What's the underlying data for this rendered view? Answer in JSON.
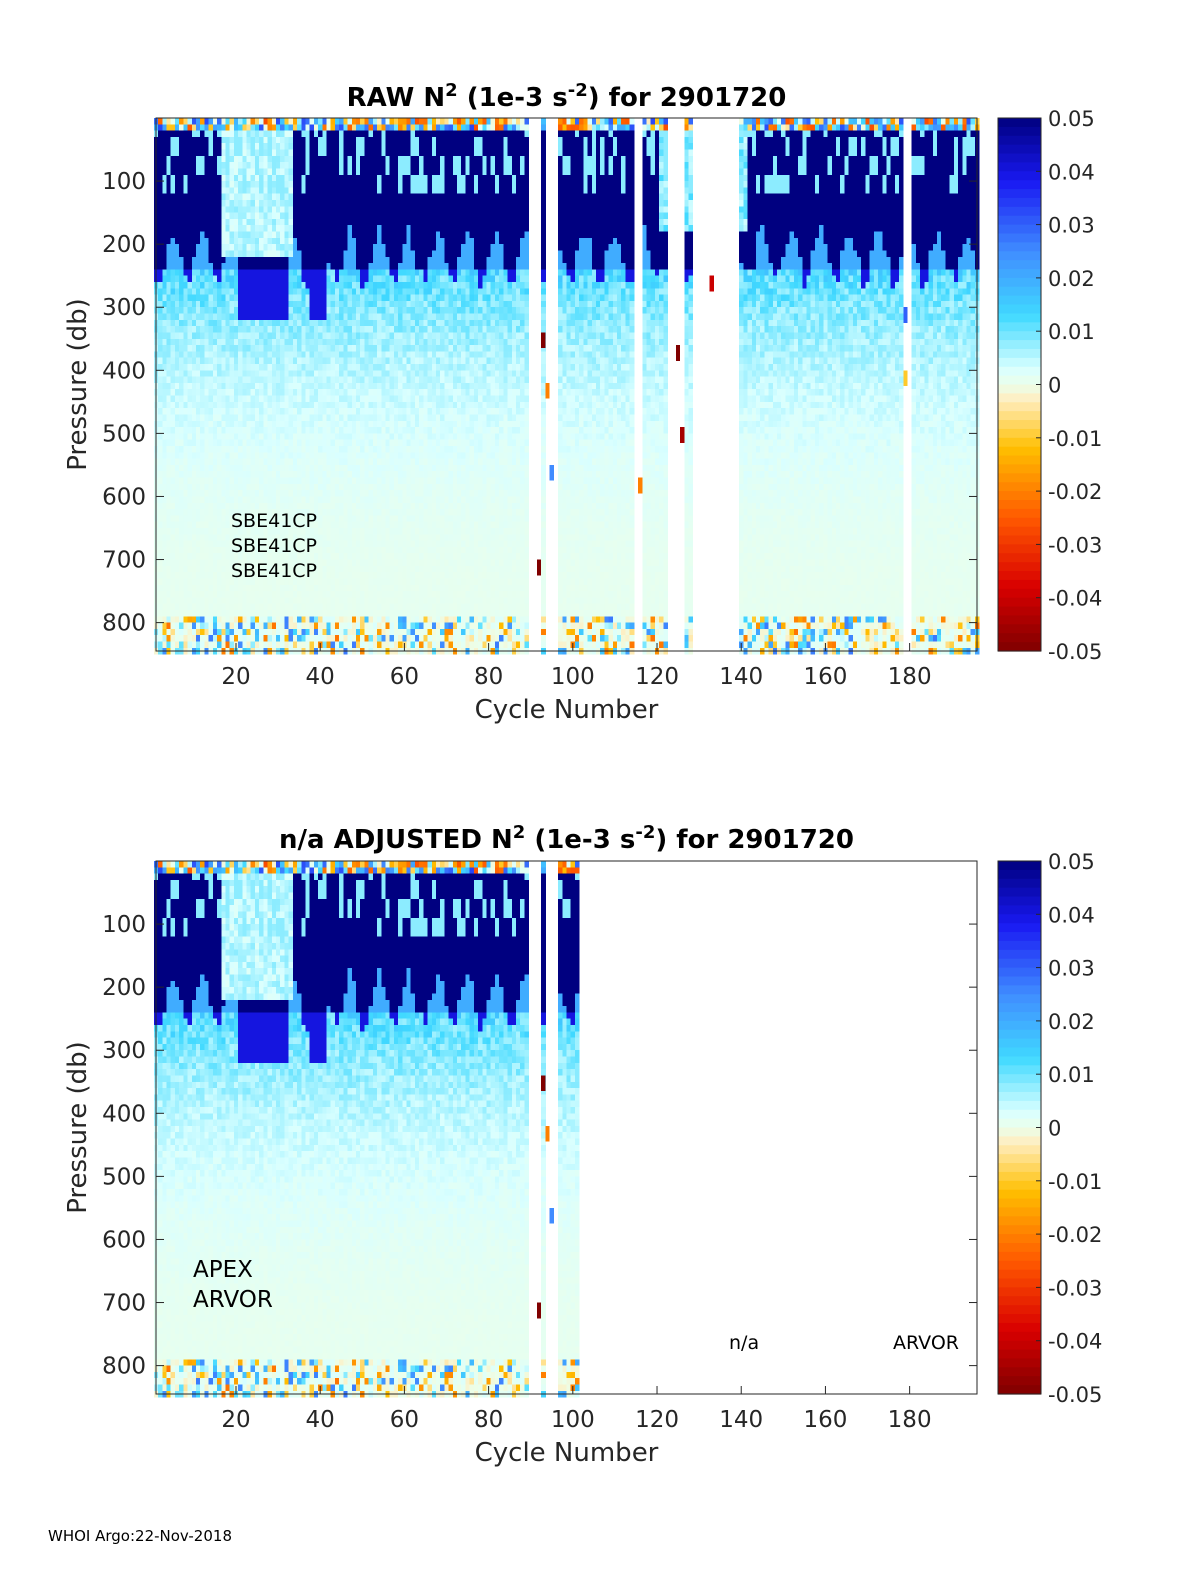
{
  "chart_data": [
    {
      "type": "heatmap",
      "title_prefix": "",
      "title_main": "RAW N",
      "title_sup": "2",
      "title_mid": " (1e-3 s",
      "title_sup2": "-2",
      "title_end": ") for 2901720",
      "xlabel": "Cycle Number",
      "ylabel": "Pressure (db)",
      "xlim": [
        1,
        196
      ],
      "ylim": [
        845,
        0
      ],
      "xticks": [
        "20",
        "40",
        "60",
        "80",
        "100",
        "120",
        "140",
        "160",
        "180"
      ],
      "yticks": [
        "100",
        "200",
        "300",
        "400",
        "500",
        "600",
        "700",
        "800"
      ],
      "clim": [
        -0.05,
        0.05
      ],
      "cycle_max": 196,
      "gaps": [
        [
          90,
          92
        ],
        [
          94,
          96
        ],
        [
          115,
          116
        ],
        [
          123,
          124
        ],
        [
          125,
          126
        ],
        [
          129,
          139
        ],
        [
          179,
          180
        ]
      ],
      "annotations": [
        "SBE41CP",
        "SBE41CP",
        "SBE41CP"
      ]
    },
    {
      "type": "heatmap",
      "title_prefix": "n/a  ",
      "title_main": "ADJUSTED N",
      "title_sup": "2",
      "title_mid": " (1e-3 s",
      "title_sup2": "-2",
      "title_end": ") for 2901720",
      "xlabel": "Cycle Number",
      "ylabel": "Pressure (db)",
      "xlim": [
        1,
        196
      ],
      "ylim": [
        845,
        0
      ],
      "xticks": [
        "20",
        "40",
        "60",
        "80",
        "100",
        "120",
        "140",
        "160",
        "180"
      ],
      "yticks": [
        "100",
        "200",
        "300",
        "400",
        "500",
        "600",
        "700",
        "800"
      ],
      "clim": [
        -0.05,
        0.05
      ],
      "cycle_max": 101,
      "gaps": [
        [
          90,
          92
        ],
        [
          94,
          96
        ]
      ],
      "annotations": [
        "APEX",
        "ARVOR"
      ],
      "right_annotations": [
        "n/a",
        "ARVOR"
      ]
    }
  ],
  "colorbar": {
    "ticks": [
      "0.05",
      "0.04",
      "0.03",
      "0.02",
      "0.01",
      "0",
      "-0.01",
      "-0.02",
      "-0.03",
      "-0.04",
      "-0.05"
    ]
  },
  "footer": "WHOI Argo:22-Nov-2018"
}
